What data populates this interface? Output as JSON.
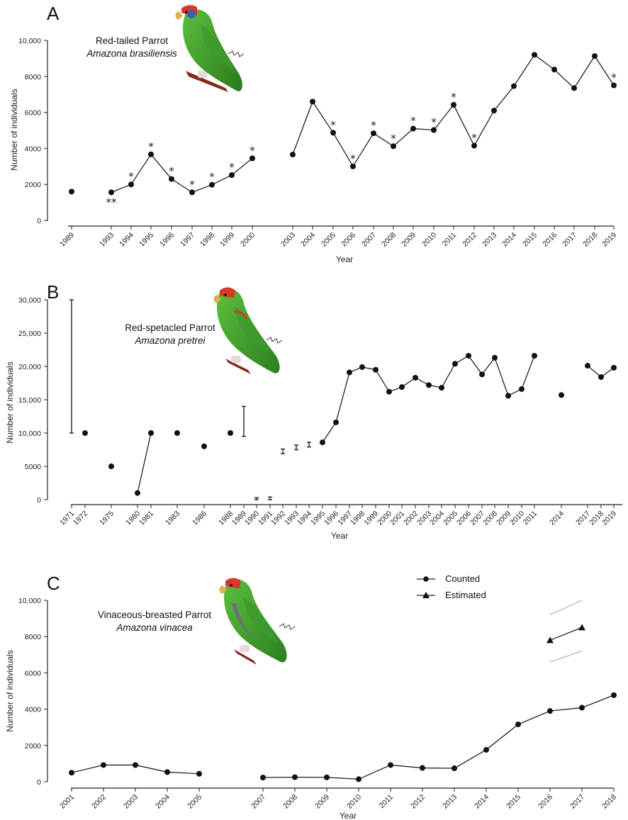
{
  "chart_data": [
    {
      "panel": "A",
      "type": "line",
      "species_common": "Red-tailed Parrot",
      "species_latin": "Amazona brasiliensis",
      "xlabel": "Year",
      "ylabel": "Number of individuals",
      "ylim": [
        0,
        10000
      ],
      "yticks": [
        0,
        2000,
        4000,
        6000,
        8000,
        10000
      ],
      "ytick_labels": [
        "0",
        "2000",
        "4000",
        "6000",
        "8000",
        "10,000"
      ],
      "x_categories": [
        "1989",
        "1993",
        "1994",
        "1995",
        "1996",
        "1997",
        "1998",
        "1999",
        "2000",
        "2003",
        "2004",
        "2005",
        "2006",
        "2007",
        "2008",
        "2009",
        "2010",
        "2011",
        "2012",
        "2013",
        "2014",
        "2015",
        "2016",
        "2017",
        "2018",
        "2019"
      ],
      "values": [
        1600,
        1560,
        2000,
        3670,
        2300,
        1560,
        1980,
        2520,
        3450,
        3660,
        6600,
        4870,
        3000,
        4840,
        4120,
        5100,
        5020,
        6420,
        4150,
        6100,
        7460,
        9200,
        8380,
        7350,
        9130,
        7500
      ],
      "annotations": [
        "",
        "**",
        "*",
        "*",
        "*",
        "*",
        "*",
        "*",
        "*",
        "",
        "",
        "*",
        "*",
        "*",
        "*",
        "*",
        "*",
        "*",
        "*",
        "",
        "",
        "",
        "",
        "",
        "",
        "*"
      ],
      "segments": [
        [
          0,
          0
        ],
        [
          1,
          8
        ],
        [
          9,
          25
        ]
      ]
    },
    {
      "panel": "B",
      "type": "line",
      "species_common": "Red-spetacled Parrot",
      "species_latin": "Amazona pretrei",
      "xlabel": "Year",
      "ylabel": "Number of individuals",
      "ylim": [
        0,
        30000
      ],
      "yticks": [
        0,
        5000,
        10000,
        15000,
        20000,
        25000,
        30000
      ],
      "ytick_labels": [
        "0",
        "5000",
        "10,000",
        "15,000",
        "20,000",
        "25,000",
        "30,000"
      ],
      "x_categories": [
        "1971",
        "1972",
        "1975",
        "1980",
        "1981",
        "1983",
        "1986",
        "1988",
        "1989",
        "1990",
        "1991",
        "1992",
        "1993",
        "1994",
        "1995",
        "1996",
        "1997",
        "1998",
        "1999",
        "2000",
        "2001",
        "2002",
        "2003",
        "2004",
        "2005",
        "2006",
        "2007",
        "2008",
        "2009",
        "2010",
        "2011",
        "2014",
        "2017",
        "2018",
        "2019"
      ],
      "points": [
        {
          "year": "1971",
          "low": 10000,
          "high": 30000
        },
        {
          "year": "1972",
          "value": 10000
        },
        {
          "year": "1975",
          "value": 5000
        },
        {
          "year": "1980",
          "value": 1000
        },
        {
          "year": "1981",
          "value": 10000
        },
        {
          "year": "1983",
          "value": 10000
        },
        {
          "year": "1986",
          "value": 8000
        },
        {
          "year": "1988",
          "value": 10000
        },
        {
          "year": "1989",
          "low": 9500,
          "high": 14000
        },
        {
          "year": "1990",
          "low": 0,
          "high": 300
        },
        {
          "year": "1991",
          "low": 0,
          "high": 400
        },
        {
          "year": "1992",
          "low": 6900,
          "high": 7600
        },
        {
          "year": "1993",
          "low": 7500,
          "high": 8200
        },
        {
          "year": "1994",
          "low": 7900,
          "high": 8600
        },
        {
          "year": "1995",
          "value": 8600
        },
        {
          "year": "1996",
          "value": 11600
        },
        {
          "year": "1997",
          "value": 19100
        },
        {
          "year": "1998",
          "value": 19900
        },
        {
          "year": "1999",
          "value": 19500
        },
        {
          "year": "2000",
          "value": 16200
        },
        {
          "year": "2001",
          "value": 16900
        },
        {
          "year": "2002",
          "value": 18300
        },
        {
          "year": "2003",
          "value": 17200
        },
        {
          "year": "2004",
          "value": 16800
        },
        {
          "year": "2005",
          "value": 20400
        },
        {
          "year": "2006",
          "value": 21600
        },
        {
          "year": "2007",
          "value": 18800
        },
        {
          "year": "2008",
          "value": 21300
        },
        {
          "year": "2009",
          "value": 15600
        },
        {
          "year": "2010",
          "value": 16600
        },
        {
          "year": "2011",
          "value": 21600
        },
        {
          "year": "2014",
          "value": 15700
        },
        {
          "year": "2017",
          "value": 20100
        },
        {
          "year": "2018",
          "value": 18400
        },
        {
          "year": "2019",
          "value": 19800
        }
      ],
      "segments": [
        [
          "1980",
          "1981"
        ],
        [
          "1995",
          "2011"
        ],
        [
          "2017",
          "2019"
        ]
      ]
    },
    {
      "panel": "C",
      "type": "line",
      "species_common": "Vinaceous-breasted Parrot",
      "species_latin": "Amazona vinacea",
      "xlabel": "Year",
      "ylabel": "Number of individuals",
      "ylim": [
        0,
        10000
      ],
      "yticks": [
        0,
        2000,
        4000,
        6000,
        8000,
        10000
      ],
      "ytick_labels": [
        "0",
        "2000",
        "4000",
        "6000",
        "8000",
        "10,000"
      ],
      "x_categories": [
        "2001",
        "2002",
        "2003",
        "2004",
        "2005",
        "2007",
        "2008",
        "2009",
        "2010",
        "2011",
        "2012",
        "2013",
        "2014",
        "2015",
        "2016",
        "2017",
        "2018"
      ],
      "legend": [
        "Counted",
        "Estimated"
      ],
      "series": [
        {
          "name": "Counted",
          "marker": "circle",
          "x": [
            "2001",
            "2002",
            "2003",
            "2004",
            "2005",
            "2007",
            "2008",
            "2009",
            "2010",
            "2011",
            "2012",
            "2013",
            "2014",
            "2015",
            "2016",
            "2017",
            "2018"
          ],
          "values": [
            500,
            920,
            920,
            530,
            440,
            230,
            250,
            240,
            140,
            920,
            760,
            740,
            1760,
            3160,
            3900,
            4080,
            4770
          ],
          "segments": [
            [
              0,
              4
            ],
            [
              5,
              16
            ]
          ]
        },
        {
          "name": "Estimated",
          "marker": "triangle",
          "x": [
            "2016",
            "2017"
          ],
          "values": [
            7800,
            8500
          ],
          "ci_upper": [
            9200,
            10000
          ],
          "ci_lower": [
            6600,
            7200
          ]
        }
      ]
    }
  ],
  "colors": {
    "line": "#222222",
    "ci": "#bdbdbd",
    "parrot_body": "#3a9a2a",
    "parrot_dark": "#2b7a1d"
  },
  "icons": [
    "parrot-illustration"
  ]
}
